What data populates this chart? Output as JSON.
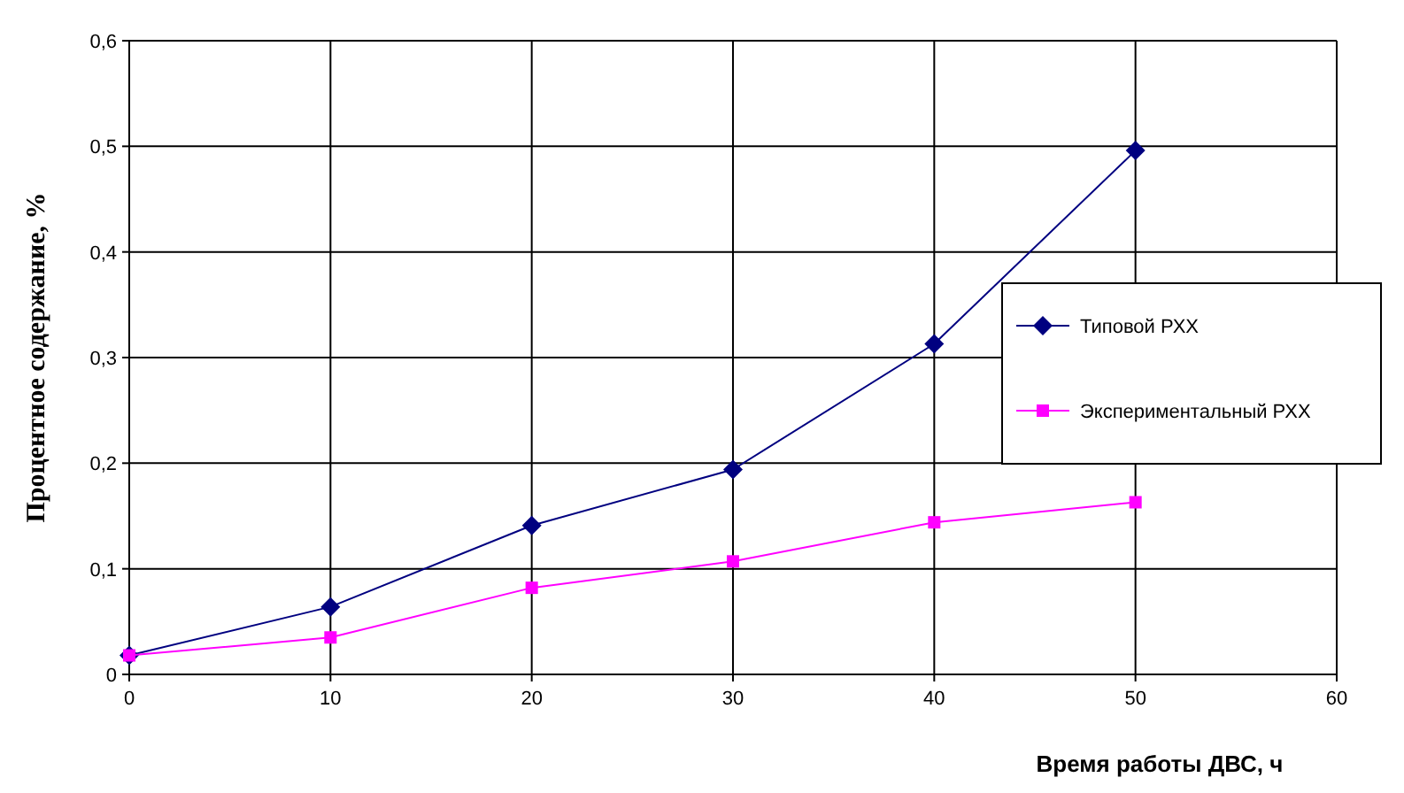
{
  "chart_data": {
    "type": "line",
    "xlabel": "Время работы ДВС, ч",
    "ylabel": "Процентное содержание, %",
    "x": [
      0,
      10,
      20,
      30,
      40,
      50
    ],
    "series": [
      {
        "name": "Типовой РХХ",
        "color": "#000080",
        "marker": "diamond",
        "values": [
          0.018,
          0.064,
          0.141,
          0.194,
          0.313,
          0.496
        ]
      },
      {
        "name": "Экспериментальный РХХ",
        "color": "#ff00ff",
        "marker": "square",
        "values": [
          0.018,
          0.035,
          0.082,
          0.107,
          0.144,
          0.163
        ]
      }
    ],
    "xlim": [
      0,
      60
    ],
    "xticks": [
      0,
      10,
      20,
      30,
      40,
      50,
      60
    ],
    "ylim": [
      0,
      0.6
    ],
    "yticks": [
      0,
      {
        "value": 0.1,
        "label": "0,1"
      },
      {
        "value": 0.2,
        "label": "0,2"
      },
      {
        "value": 0.3,
        "label": "0,3"
      },
      {
        "value": 0.4,
        "label": "0,4"
      },
      {
        "value": 0.5,
        "label": "0,5"
      },
      {
        "value": 0.6,
        "label": "0,6"
      }
    ],
    "grid": true,
    "legend": "right",
    "line_style": "solid"
  }
}
